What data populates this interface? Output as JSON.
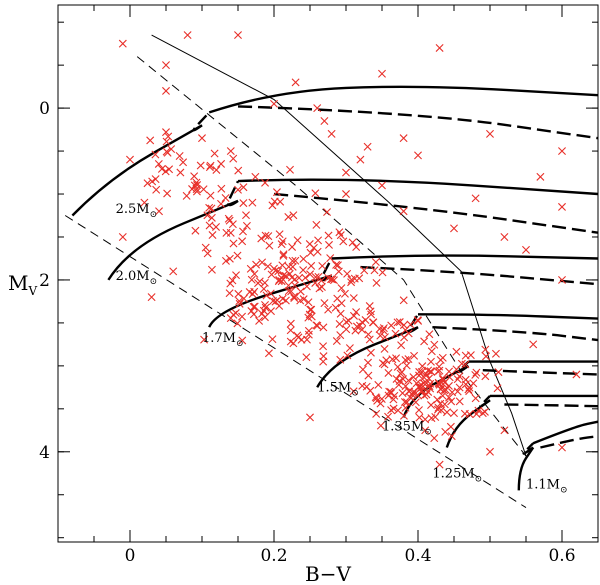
{
  "chart_data": {
    "type": "scatter",
    "title": "",
    "xlabel": "B−V",
    "ylabel": "M",
    "ylabel_sub": "V",
    "xlim": [
      -0.1,
      0.65
    ],
    "ylim": [
      5.05,
      -1.2
    ],
    "x_ticks": [
      0,
      0.2,
      0.4,
      0.6
    ],
    "x_tick_labels": [
      "0",
      "0.2",
      "0.4",
      "0.6"
    ],
    "y_ticks": [
      0,
      2,
      4
    ],
    "y_tick_labels": [
      "0",
      "2",
      "4"
    ],
    "colors": {
      "stars": "#e8302a",
      "lines": "#000000"
    },
    "mass_labels": [
      {
        "text": "2.5M",
        "sun": "⊙",
        "at": [
          -0.02,
          1.22
        ]
      },
      {
        "text": "2.0M",
        "sun": "⊙",
        "at": [
          -0.02,
          2.0
        ]
      },
      {
        "text": "1.7M",
        "sun": "⊙",
        "at": [
          0.1,
          2.72
        ]
      },
      {
        "text": "1.5M",
        "sun": "⊙",
        "at": [
          0.26,
          3.3
        ]
      },
      {
        "text": "1.35M",
        "sun": "⊙",
        "at": [
          0.35,
          3.75
        ]
      },
      {
        "text": "1.25M",
        "sun": "⊙",
        "at": [
          0.42,
          4.3
        ]
      },
      {
        "text": "1.1M",
        "sun": "⊙",
        "at": [
          0.55,
          4.43
        ]
      }
    ],
    "zams": [
      [
        -0.09,
        1.25
      ],
      [
        0.55,
        4.65
      ]
    ],
    "boundary_left": [
      [
        0.01,
        -0.6
      ],
      [
        0.23,
        0.9
      ],
      [
        0.38,
        2.0
      ],
      [
        0.47,
        3.2
      ],
      [
        0.55,
        4.05
      ]
    ],
    "boundary_right": [
      [
        0.03,
        -0.85
      ],
      [
        0.2,
        -0.1
      ],
      [
        0.36,
        1.1
      ],
      [
        0.46,
        1.9
      ],
      [
        0.5,
        2.95
      ],
      [
        0.53,
        3.55
      ],
      [
        0.55,
        4.05
      ]
    ],
    "tracks": [
      {
        "name": "2.5",
        "start": [
          -0.08,
          1.25
        ],
        "turn": [
          -0.03,
          0.82
        ],
        "hook": [
          0.1,
          0.2
        ],
        "giant_solid": [
          [
            0.11,
            0.05
          ],
          [
            0.2,
            -0.2
          ],
          [
            0.4,
            -0.27
          ],
          [
            0.65,
            -0.15
          ]
        ],
        "giant_dash": [
          [
            0.15,
            -0.02
          ],
          [
            0.4,
            0.05
          ],
          [
            0.65,
            0.35
          ]
        ]
      },
      {
        "name": "2.0",
        "start": [
          -0.03,
          2.0
        ],
        "turn": [
          0.0,
          1.6
        ],
        "hook": [
          0.15,
          1.08
        ],
        "giant_solid": [
          [
            0.15,
            0.85
          ],
          [
            0.3,
            0.8
          ],
          [
            0.65,
            1.0
          ]
        ],
        "giant_dash": [
          [
            0.2,
            1.0
          ],
          [
            0.4,
            1.15
          ],
          [
            0.65,
            1.45
          ]
        ]
      },
      {
        "name": "1.7",
        "start": [
          0.11,
          2.55
        ],
        "turn": [
          0.12,
          2.35
        ],
        "hook": [
          0.28,
          1.95
        ],
        "giant_solid": [
          [
            0.28,
            1.75
          ],
          [
            0.4,
            1.7
          ],
          [
            0.65,
            1.75
          ]
        ],
        "giant_dash": [
          [
            0.32,
            1.85
          ],
          [
            0.45,
            1.9
          ],
          [
            0.65,
            2.05
          ]
        ]
      },
      {
        "name": "1.5",
        "start": [
          0.26,
          3.25
        ],
        "turn": [
          0.28,
          2.95
        ],
        "hook": [
          0.4,
          2.55
        ],
        "giant_solid": [
          [
            0.4,
            2.4
          ],
          [
            0.5,
            2.4
          ],
          [
            0.65,
            2.45
          ]
        ],
        "giant_dash": [
          [
            0.42,
            2.55
          ],
          [
            0.55,
            2.6
          ],
          [
            0.65,
            2.7
          ]
        ]
      },
      {
        "name": "1.35",
        "start": [
          0.38,
          3.6
        ],
        "turn": [
          0.39,
          3.35
        ],
        "hook": [
          0.47,
          3.0
        ],
        "giant_solid": [
          [
            0.47,
            2.95
          ],
          [
            0.55,
            2.95
          ],
          [
            0.65,
            2.95
          ]
        ],
        "giant_dash": [
          [
            0.49,
            3.05
          ],
          [
            0.58,
            3.08
          ],
          [
            0.65,
            3.1
          ]
        ]
      },
      {
        "name": "1.25",
        "start": [
          0.44,
          3.95
        ],
        "turn": [
          0.45,
          3.7
        ],
        "hook": [
          0.5,
          3.4
        ],
        "giant_solid": [
          [
            0.5,
            3.35
          ],
          [
            0.58,
            3.35
          ],
          [
            0.65,
            3.35
          ]
        ],
        "giant_dash": [
          [
            0.52,
            3.45
          ],
          [
            0.6,
            3.46
          ],
          [
            0.65,
            3.47
          ]
        ]
      },
      {
        "name": "1.1",
        "start": [
          0.54,
          4.45
        ],
        "turn": [
          0.54,
          4.2
        ],
        "hook": [
          0.56,
          3.95
        ],
        "giant_solid": [
          [
            0.56,
            3.9
          ],
          [
            0.62,
            3.7
          ],
          [
            0.65,
            3.65
          ]
        ],
        "giant_dash": [
          [
            0.57,
            3.95
          ],
          [
            0.62,
            3.85
          ],
          [
            0.65,
            3.82
          ]
        ]
      }
    ],
    "stars_outliers": [
      [
        -0.01,
        -0.75
      ],
      [
        0.08,
        -0.85
      ],
      [
        0.15,
        -0.85
      ],
      [
        0.05,
        -0.5
      ],
      [
        0.43,
        -0.7
      ],
      [
        0.23,
        -0.3
      ],
      [
        0.05,
        -0.2
      ],
      [
        0.35,
        -0.4
      ],
      [
        0.28,
        0.3
      ],
      [
        0.33,
        0.45
      ],
      [
        0.38,
        0.35
      ],
      [
        0.4,
        0.55
      ],
      [
        0.32,
        0.6
      ],
      [
        0.5,
        0.3
      ],
      [
        0.6,
        0.5
      ],
      [
        0.57,
        0.8
      ],
      [
        0.48,
        1.05
      ],
      [
        0.6,
        1.15
      ],
      [
        0.52,
        1.5
      ],
      [
        0.55,
        1.65
      ],
      [
        0.6,
        2.0
      ],
      [
        0.56,
        2.75
      ],
      [
        0.62,
        3.1
      ],
      [
        0.6,
        3.95
      ],
      [
        -0.01,
        1.5
      ],
      [
        0.03,
        2.2
      ],
      [
        0.06,
        1.9
      ],
      [
        0.02,
        1.1
      ],
      [
        0.0,
        0.6
      ],
      [
        0.2,
        -0.05
      ],
      [
        0.26,
        0.0
      ],
      [
        0.3,
        1.0
      ],
      [
        0.38,
        1.2
      ],
      [
        0.45,
        1.4
      ],
      [
        0.27,
        0.15
      ],
      [
        0.1,
        0.35
      ],
      [
        0.14,
        0.5
      ],
      [
        0.12,
        0.72
      ],
      [
        0.04,
        0.65
      ],
      [
        0.07,
        0.75
      ],
      [
        0.09,
        0.9
      ],
      [
        0.15,
        0.95
      ],
      [
        0.17,
        1.1
      ],
      [
        0.05,
        0.28
      ],
      [
        0.3,
        0.75
      ],
      [
        0.35,
        0.9
      ],
      [
        0.25,
        3.6
      ],
      [
        0.41,
        3.75
      ],
      [
        0.43,
        4.15
      ],
      [
        0.5,
        4.0
      ],
      [
        0.52,
        3.75
      ],
      [
        0.49,
        3.55
      ],
      [
        0.45,
        3.55
      ],
      [
        0.36,
        3.3
      ]
    ],
    "star_clusters": [
      {
        "center": [
          0.23,
          2.1
        ],
        "spread": [
          0.1,
          0.55
        ],
        "count": 170
      },
      {
        "center": [
          0.41,
          3.25
        ],
        "spread": [
          0.07,
          0.4
        ],
        "count": 150
      },
      {
        "center": [
          0.15,
          1.15
        ],
        "spread": [
          0.08,
          0.45
        ],
        "count": 45
      },
      {
        "center": [
          0.07,
          0.7
        ],
        "spread": [
          0.06,
          0.35
        ],
        "count": 25
      },
      {
        "center": [
          0.33,
          2.7
        ],
        "spread": [
          0.08,
          0.35
        ],
        "count": 50
      }
    ]
  }
}
